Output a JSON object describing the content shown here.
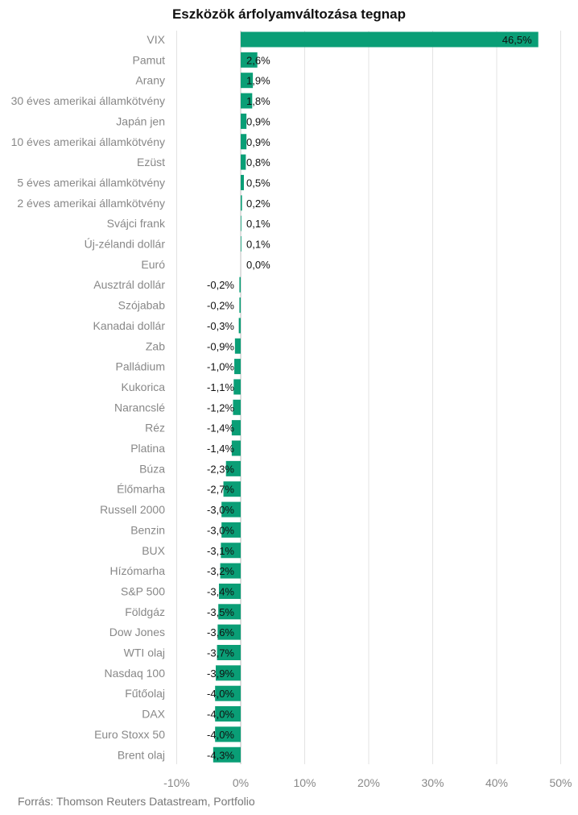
{
  "chart_data": {
    "type": "bar",
    "orientation": "horizontal",
    "title": "Eszközök árfolyamváltozása tegnap",
    "source": "Forrás: Thomson Reuters Datastream, Portfolio",
    "xlim": [
      -10,
      50
    ],
    "grid": true,
    "ticks": [
      {
        "value": -10,
        "label": "-10%"
      },
      {
        "value": 0,
        "label": "0%"
      },
      {
        "value": 10,
        "label": "10%"
      },
      {
        "value": 20,
        "label": "20%"
      },
      {
        "value": 30,
        "label": "30%"
      },
      {
        "value": 40,
        "label": "40%"
      },
      {
        "value": 50,
        "label": "50%"
      }
    ],
    "bar_color": "#0a9e76",
    "bars": [
      {
        "category": "VIX",
        "value": 46.5,
        "label": "46,5%"
      },
      {
        "category": "Pamut",
        "value": 2.6,
        "label": "2,6%"
      },
      {
        "category": "Arany",
        "value": 1.9,
        "label": "1,9%"
      },
      {
        "category": "30 éves amerikai államkötvény",
        "value": 1.8,
        "label": "1,8%"
      },
      {
        "category": "Japán jen",
        "value": 0.9,
        "label": "0,9%"
      },
      {
        "category": "10 éves amerikai államkötvény",
        "value": 0.9,
        "label": "0,9%"
      },
      {
        "category": "Ezüst",
        "value": 0.8,
        "label": "0,8%"
      },
      {
        "category": "5 éves amerikai államkötvény",
        "value": 0.5,
        "label": "0,5%"
      },
      {
        "category": "2 éves amerikai államkötvény",
        "value": 0.2,
        "label": "0,2%"
      },
      {
        "category": "Svájci frank",
        "value": 0.1,
        "label": "0,1%"
      },
      {
        "category": "Új-zélandi dollár",
        "value": 0.1,
        "label": "0,1%"
      },
      {
        "category": "Euró",
        "value": 0.0,
        "label": "0,0%"
      },
      {
        "category": "Ausztrál dollár",
        "value": -0.2,
        "label": "-0,2%"
      },
      {
        "category": "Szójabab",
        "value": -0.2,
        "label": "-0,2%"
      },
      {
        "category": "Kanadai dollár",
        "value": -0.3,
        "label": "-0,3%"
      },
      {
        "category": "Zab",
        "value": -0.9,
        "label": "-0,9%"
      },
      {
        "category": "Palládium",
        "value": -1.0,
        "label": "-1,0%"
      },
      {
        "category": "Kukorica",
        "value": -1.1,
        "label": "-1,1%"
      },
      {
        "category": "Narancslé",
        "value": -1.2,
        "label": "-1,2%"
      },
      {
        "category": "Réz",
        "value": -1.4,
        "label": "-1,4%"
      },
      {
        "category": "Platina",
        "value": -1.4,
        "label": "-1,4%"
      },
      {
        "category": "Búza",
        "value": -2.3,
        "label": "-2,3%"
      },
      {
        "category": "Élőmarha",
        "value": -2.7,
        "label": "-2,7%"
      },
      {
        "category": "Russell 2000",
        "value": -3.0,
        "label": "-3,0%"
      },
      {
        "category": "Benzin",
        "value": -3.0,
        "label": "-3,0%"
      },
      {
        "category": "BUX",
        "value": -3.1,
        "label": "-3,1%"
      },
      {
        "category": "Hízómarha",
        "value": -3.2,
        "label": "-3,2%"
      },
      {
        "category": "S&P 500",
        "value": -3.4,
        "label": "-3,4%"
      },
      {
        "category": "Földgáz",
        "value": -3.5,
        "label": "-3,5%"
      },
      {
        "category": "Dow Jones",
        "value": -3.6,
        "label": "-3,6%"
      },
      {
        "category": "WTI olaj",
        "value": -3.7,
        "label": "-3,7%"
      },
      {
        "category": "Nasdaq 100",
        "value": -3.9,
        "label": "-3,9%"
      },
      {
        "category": "Fűtőolaj",
        "value": -4.0,
        "label": "-4,0%"
      },
      {
        "category": "DAX",
        "value": -4.0,
        "label": "-4,0%"
      },
      {
        "category": "Euro Stoxx 50",
        "value": -4.0,
        "label": "-4,0%"
      },
      {
        "category": "Brent olaj",
        "value": -4.3,
        "label": "-4,3%"
      }
    ]
  }
}
